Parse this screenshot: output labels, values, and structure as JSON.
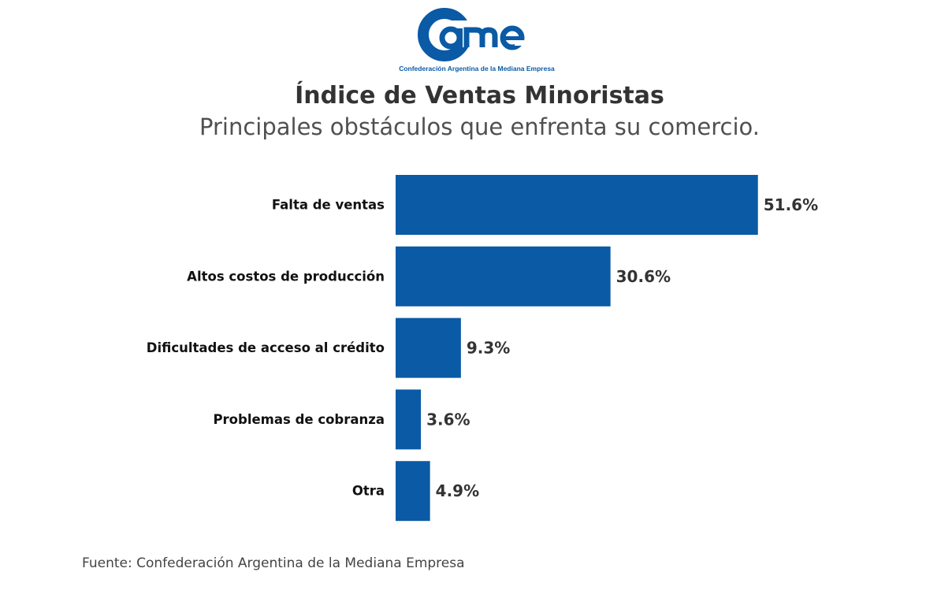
{
  "logo": {
    "text": "came",
    "tagline": "Confederación Argentina de la Mediana Empresa",
    "color": "#0a5aa6"
  },
  "header": {
    "title": "Índice de Ventas Minoristas",
    "subtitle": "Principales obstáculos que enfrenta su comercio."
  },
  "chart_data": {
    "type": "bar",
    "orientation": "horizontal",
    "categories": [
      "Falta de ventas",
      "Altos costos de producción",
      "Dificultades de acceso al crédito",
      "Problemas de cobranza",
      "Otra"
    ],
    "values": [
      51.6,
      30.6,
      9.3,
      3.6,
      4.9
    ],
    "value_labels": [
      "51.6%",
      "30.6%",
      "9.3%",
      "3.6%",
      "4.9%"
    ],
    "unit": "%",
    "title": "Índice de Ventas Minoristas",
    "subtitle": "Principales obstáculos que enfrenta su comercio.",
    "xlabel": "",
    "ylabel": "",
    "bar_color": "#0a5aa6",
    "grid": false
  },
  "footer": {
    "source": "Fuente: Confederación Argentina de la Mediana Empresa"
  }
}
